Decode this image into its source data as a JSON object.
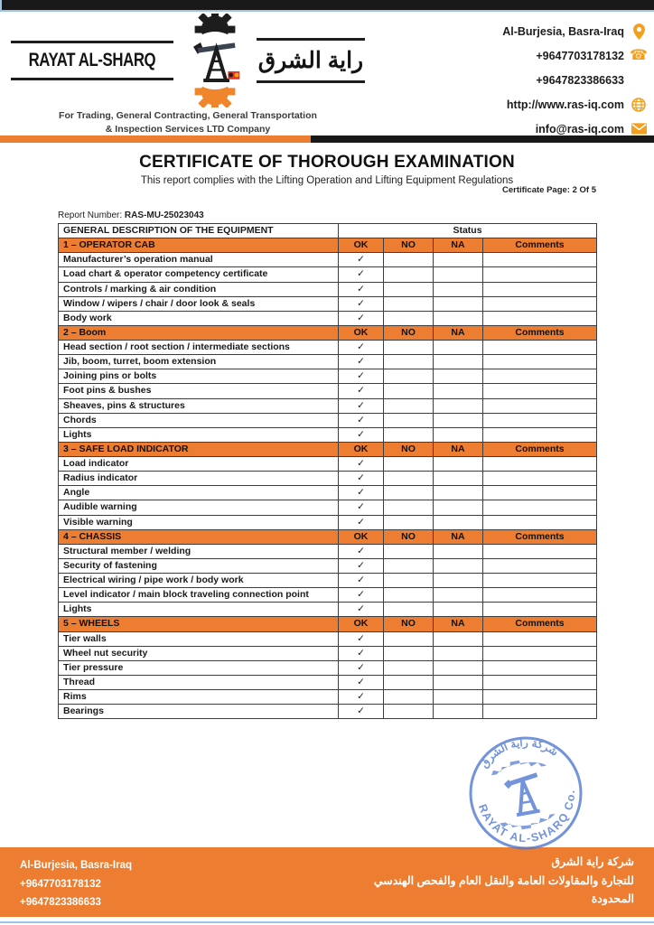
{
  "header": {
    "logo": {
      "name_en": "RAYAT AL-SHARQ",
      "name_ar": "راية الشرق",
      "tagline_line1": "For Trading, General Contracting, General Transportation",
      "tagline_line2": "& Inspection Services LTD Company"
    },
    "contacts": [
      {
        "text": "Al-Burjesia, Basra-Iraq",
        "icon": "location-pin-icon"
      },
      {
        "text": "+9647703178132",
        "icon": "phone-icon"
      },
      {
        "text": "+9647823386633",
        "icon": "none"
      },
      {
        "text": "http://www.ras-iq.com",
        "icon": "globe-icon"
      },
      {
        "text": "info@ras-iq.com",
        "icon": "envelope-icon"
      }
    ]
  },
  "title": "CERTIFICATE OF THOROUGH EXAMINATION",
  "subtitle": "This report complies with the Lifting Operation and Lifting Equipment Regulations",
  "certificate_page": "Certificate Page: 2 Of 5",
  "report_number_label": "Report Number:",
  "report_number": "RAS-MU-25023043",
  "table": {
    "header": {
      "description": "GENERAL DESCRIPTION OF THE EQUIPMENT",
      "status": "Status"
    },
    "status_columns": [
      "OK",
      "NO",
      "NA",
      "Comments"
    ],
    "check_mark": "✓",
    "sections": [
      {
        "title": "1 – OPERATOR CAB",
        "rows": [
          {
            "label": "Manufacturer’s operation manual",
            "ok": true,
            "no": false,
            "na": false,
            "comment": ""
          },
          {
            "label": "Load chart & operator competency certificate",
            "ok": true,
            "no": false,
            "na": false,
            "comment": ""
          },
          {
            "label": "Controls / marking & air condition",
            "ok": true,
            "no": false,
            "na": false,
            "comment": ""
          },
          {
            "label": "Window / wipers / chair / door look & seals",
            "ok": true,
            "no": false,
            "na": false,
            "comment": ""
          },
          {
            "label": "Body work",
            "ok": true,
            "no": false,
            "na": false,
            "comment": ""
          }
        ]
      },
      {
        "title": "2 – Boom",
        "rows": [
          {
            "label": "Head section / root section / intermediate sections",
            "ok": true,
            "no": false,
            "na": false,
            "comment": ""
          },
          {
            "label": "Jib, boom, turret, boom extension",
            "ok": true,
            "no": false,
            "na": false,
            "comment": ""
          },
          {
            "label": "Joining pins or bolts",
            "ok": true,
            "no": false,
            "na": false,
            "comment": ""
          },
          {
            "label": "Foot pins & bushes",
            "ok": true,
            "no": false,
            "na": false,
            "comment": ""
          },
          {
            "label": "Sheaves, pins & structures",
            "ok": true,
            "no": false,
            "na": false,
            "comment": ""
          },
          {
            "label": "Chords",
            "ok": true,
            "no": false,
            "na": false,
            "comment": ""
          },
          {
            "label": "Lights",
            "ok": true,
            "no": false,
            "na": false,
            "comment": ""
          }
        ]
      },
      {
        "title": "3 – SAFE LOAD INDICATOR",
        "rows": [
          {
            "label": "Load indicator",
            "ok": true,
            "no": false,
            "na": false,
            "comment": ""
          },
          {
            "label": "Radius indicator",
            "ok": true,
            "no": false,
            "na": false,
            "comment": ""
          },
          {
            "label": "Angle",
            "ok": true,
            "no": false,
            "na": false,
            "comment": ""
          },
          {
            "label": "Audible warning",
            "ok": true,
            "no": false,
            "na": false,
            "comment": ""
          },
          {
            "label": "Visible warning",
            "ok": true,
            "no": false,
            "na": false,
            "comment": ""
          }
        ]
      },
      {
        "title": "4 – CHASSIS",
        "rows": [
          {
            "label": "Structural member / welding",
            "ok": true,
            "no": false,
            "na": false,
            "comment": ""
          },
          {
            "label": "Security of fastening",
            "ok": true,
            "no": false,
            "na": false,
            "comment": ""
          },
          {
            "label": "Electrical wiring / pipe work / body work",
            "ok": true,
            "no": false,
            "na": false,
            "comment": ""
          },
          {
            "label": "Level indicator / main block traveling connection point",
            "ok": true,
            "no": false,
            "na": false,
            "comment": ""
          },
          {
            "label": "Lights",
            "ok": true,
            "no": false,
            "na": false,
            "comment": ""
          }
        ]
      },
      {
        "title": "5 – WHEELS",
        "rows": [
          {
            "label": "Tier walls",
            "ok": true,
            "no": false,
            "na": false,
            "comment": ""
          },
          {
            "label": "Wheel nut security",
            "ok": true,
            "no": false,
            "na": false,
            "comment": ""
          },
          {
            "label": "Tier pressure",
            "ok": true,
            "no": false,
            "na": false,
            "comment": ""
          },
          {
            "label": "Thread",
            "ok": true,
            "no": false,
            "na": false,
            "comment": ""
          },
          {
            "label": "Rims",
            "ok": true,
            "no": false,
            "na": false,
            "comment": ""
          },
          {
            "label": "Bearings",
            "ok": true,
            "no": false,
            "na": false,
            "comment": ""
          }
        ]
      }
    ]
  },
  "stamp": {
    "top_text": "شركة راية الشرق",
    "bottom_text": "RAYAT AL-SHARQ Co."
  },
  "footer": {
    "lines": [
      "Al-Burjesia, Basra-Iraq",
      "+9647703178132",
      "+9647823386633"
    ],
    "arabic_lines": [
      "شركة راية الشرق",
      "للتجارة والمقاولات العامة والنقل العام والفحص الهندسي",
      "المحدودة"
    ]
  },
  "colors": {
    "accent_orange": "#ED7D31",
    "icon_orange": "#F4A01D",
    "stamp_blue": "#4C76D0",
    "bar_black": "#181818",
    "light_blue": "#9DC3E6"
  }
}
